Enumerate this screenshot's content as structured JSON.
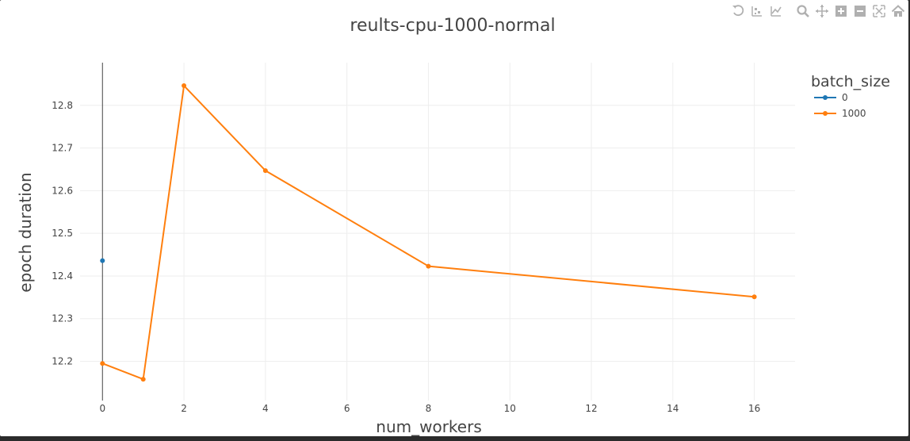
{
  "chart_data": {
    "type": "line",
    "title": "reults-cpu-1000-normal",
    "xlabel": "num_workers",
    "ylabel": "epoch duration",
    "xlim": [
      -0.55,
      17.0
    ],
    "ylim": [
      12.108,
      12.9
    ],
    "xticks": [
      0,
      2,
      4,
      6,
      8,
      10,
      12,
      14,
      16
    ],
    "yticks": [
      12.2,
      12.3,
      12.4,
      12.5,
      12.6,
      12.7,
      12.8
    ],
    "grid": true,
    "legend": {
      "title": "batch_size",
      "placement": "top-right"
    },
    "series": [
      {
        "name": "0",
        "color": "#1f77b4",
        "x": [
          0
        ],
        "y": [
          12.436
        ]
      },
      {
        "name": "1000",
        "color": "#ff7f0e",
        "x": [
          0,
          1,
          2,
          4,
          8,
          16
        ],
        "y": [
          12.195,
          12.158,
          12.846,
          12.647,
          12.423,
          12.351
        ]
      }
    ]
  },
  "modebar": {
    "icons": [
      "reset-axes-icon",
      "compare-hover-icon",
      "closest-hover-icon",
      "zoom-icon",
      "pan-icon",
      "zoom-in-icon",
      "zoom-out-icon",
      "autoscale-icon",
      "home-icon"
    ],
    "color": "#b0b0b0"
  }
}
